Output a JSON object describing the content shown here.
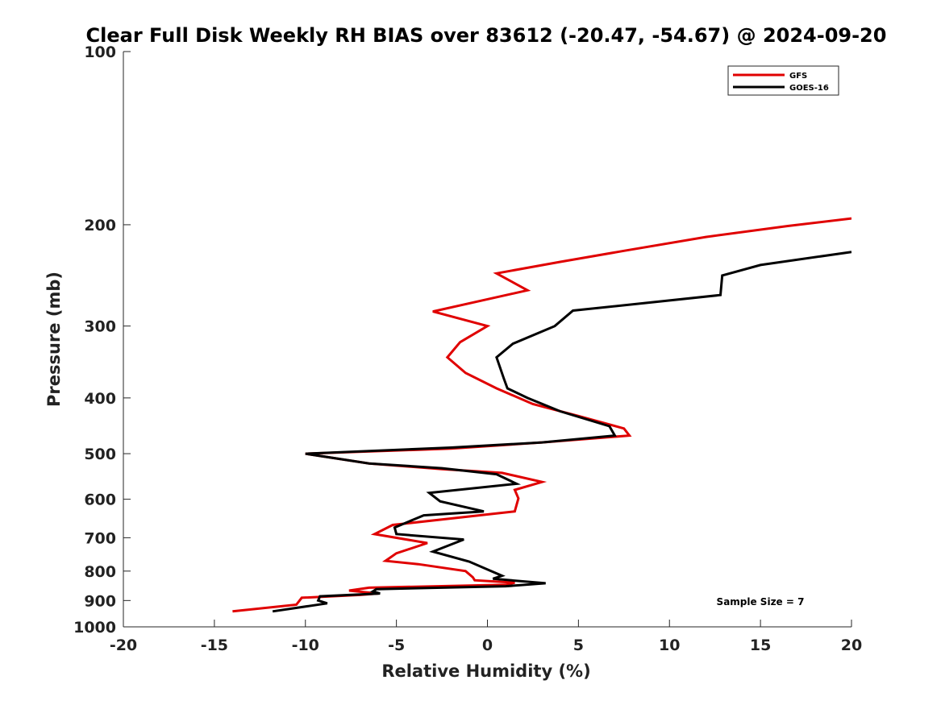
{
  "chart_data": {
    "type": "line",
    "title": "Clear Full Disk Weekly RH BIAS over 83612 (-20.47, -54.67) @ 2024-09-20",
    "xlabel": "Relative Humidity (%)",
    "ylabel": "Pressure (mb)",
    "xlim": [
      -20,
      20
    ],
    "ylim": [
      100,
      1000
    ],
    "yscale": "log",
    "y_reversed": true,
    "xticks": [
      -20,
      -15,
      -10,
      -5,
      0,
      5,
      10,
      15,
      20
    ],
    "yticks": [
      100,
      200,
      300,
      400,
      500,
      600,
      700,
      800,
      900,
      1000
    ],
    "grid": false,
    "legend_position": "top-right",
    "annotation": "Sample Size = 7",
    "series": [
      {
        "name": "GFS",
        "color": "#e00000",
        "points": [
          [
            20,
            195
          ],
          [
            16.5,
            201
          ],
          [
            12,
            210
          ],
          [
            7.5,
            222
          ],
          [
            4,
            232
          ],
          [
            0.5,
            243
          ],
          [
            2.2,
            260
          ],
          [
            -3,
            283
          ],
          [
            0,
            300
          ],
          [
            -1.5,
            320
          ],
          [
            -2.2,
            340
          ],
          [
            -1.2,
            362
          ],
          [
            0.5,
            385
          ],
          [
            2.5,
            410
          ],
          [
            5,
            430
          ],
          [
            7.5,
            452
          ],
          [
            7.8,
            465
          ],
          [
            3,
            478
          ],
          [
            -2,
            490
          ],
          [
            -10,
            500
          ],
          [
            -6.5,
            520
          ],
          [
            -2.5,
            532
          ],
          [
            0.8,
            540
          ],
          [
            3,
            560
          ],
          [
            1.5,
            578
          ],
          [
            1.7,
            598
          ],
          [
            1.5,
            630
          ],
          [
            -2,
            648
          ],
          [
            -5.2,
            665
          ],
          [
            -6.2,
            690
          ],
          [
            -3.3,
            715
          ],
          [
            -5,
            745
          ],
          [
            -5.6,
            768
          ],
          [
            -3.8,
            778
          ],
          [
            -1.2,
            800
          ],
          [
            -0.8,
            820
          ],
          [
            -0.7,
            830
          ],
          [
            1.5,
            838
          ],
          [
            1,
            845
          ],
          [
            -6.5,
            855
          ],
          [
            -7.6,
            865
          ],
          [
            -6,
            875
          ],
          [
            -7,
            880
          ],
          [
            -10.2,
            890
          ],
          [
            -10.5,
            915
          ],
          [
            -14,
            940
          ]
        ]
      },
      {
        "name": "GOES-16",
        "color": "#000000",
        "points": [
          [
            20,
            223
          ],
          [
            15,
            235
          ],
          [
            12.9,
            245
          ],
          [
            12.8,
            265
          ],
          [
            4.7,
            282
          ],
          [
            3.7,
            300
          ],
          [
            1.4,
            322
          ],
          [
            0.5,
            340
          ],
          [
            0.9,
            370
          ],
          [
            1.1,
            385
          ],
          [
            2.2,
            400
          ],
          [
            4,
            422
          ],
          [
            6.7,
            448
          ],
          [
            7,
            465
          ],
          [
            3,
            478
          ],
          [
            -2,
            488
          ],
          [
            -10,
            500
          ],
          [
            -6.5,
            520
          ],
          [
            -2.5,
            530
          ],
          [
            0.5,
            543
          ],
          [
            1.6,
            564
          ],
          [
            -3.2,
            585
          ],
          [
            -2.6,
            605
          ],
          [
            -0.2,
            630
          ],
          [
            -3.5,
            640
          ],
          [
            -5.1,
            672
          ],
          [
            -5,
            690
          ],
          [
            -1.3,
            705
          ],
          [
            -3,
            740
          ],
          [
            -1,
            770
          ],
          [
            0.2,
            800
          ],
          [
            0.8,
            815
          ],
          [
            0.3,
            825
          ],
          [
            3.2,
            840
          ],
          [
            1,
            850
          ],
          [
            -6.1,
            860
          ],
          [
            -6.3,
            868
          ],
          [
            -5.9,
            875
          ],
          [
            -9.2,
            885
          ],
          [
            -9.3,
            900
          ],
          [
            -8.8,
            910
          ],
          [
            -11.8,
            940
          ]
        ]
      }
    ]
  }
}
